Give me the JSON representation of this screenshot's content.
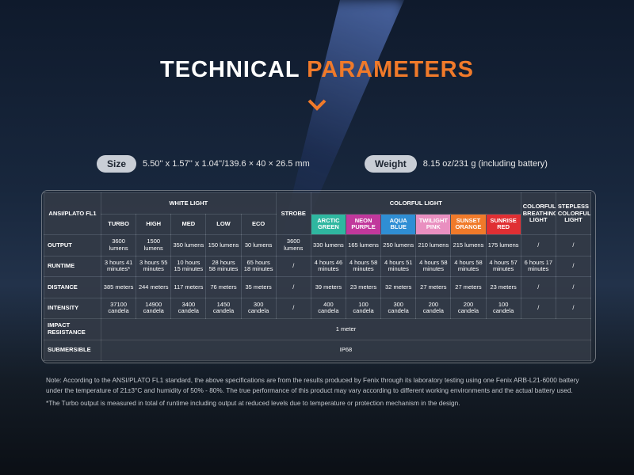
{
  "header": {
    "title_part1": "TECHNICAL",
    "title_part2": "PARAMETERS"
  },
  "specs": [
    {
      "label": "Size",
      "value": "5.50'' x 1.57'' x 1.04''/139.6 × 40 × 26.5 mm"
    },
    {
      "label": "Weight",
      "value": "8.15 oz/231 g (including battery)"
    }
  ],
  "table": {
    "corner": "ANSI/PLATO FL1",
    "groups": [
      {
        "label": "WHITE LIGHT",
        "modes": [
          "TURBO",
          "HIGH",
          "MED",
          "LOW",
          "ECO"
        ]
      },
      {
        "label": "STROBE"
      },
      {
        "label": "COLORFUL LIGHT",
        "modes": [
          "ARCTIC GREEN",
          "NEON PURPLE",
          "AQUA BLUE",
          "TWILIGHT PINK",
          "SUNSET ORANGE",
          "SUNRISE RED"
        ]
      },
      {
        "label": "COLORFUL BREATHING LIGHT"
      },
      {
        "label": "STEPLESS COLORFUL LIGHT"
      }
    ],
    "rows": [
      {
        "label": "OUTPUT",
        "values": [
          "3600 lumens",
          "1500 lumens",
          "350 lumens",
          "150 lumens",
          "30 lumens",
          "3600 lumens",
          "330 lumens",
          "165 lumens",
          "250 lumens",
          "210 lumens",
          "215 lumens",
          "175 lumens",
          "/",
          "/"
        ]
      },
      {
        "label": "RUNTIME",
        "values": [
          "3 hours 41 minutes*",
          "3 hours 55 minutes",
          "10 hours 15 minutes",
          "28 hours 58 minutes",
          "65 hours 18 minutes",
          "/",
          "4 hours 46 minutes",
          "4 hours 58 minutes",
          "4 hours 51 minutes",
          "4 hours 58 minutes",
          "4 hours 58 minutes",
          "4 hours 57 minutes",
          "6 hours 17 minutes",
          "/"
        ]
      },
      {
        "label": "DISTANCE",
        "values": [
          "385 meters",
          "244 meters",
          "117 meters",
          "76 meters",
          "35 meters",
          "/",
          "39 meters",
          "23 meters",
          "32 meters",
          "27 meters",
          "27 meters",
          "23 meters",
          "/",
          "/"
        ]
      },
      {
        "label": "INTENSITY",
        "values": [
          "37100 candela",
          "14900 candela",
          "3400 candela",
          "1450 candela",
          "300 candela",
          "/",
          "400 candela",
          "100 candela",
          "300 candela",
          "200 candela",
          "200 candela",
          "100 candela",
          "/",
          "/"
        ]
      },
      {
        "label": "IMPACT RESISTANCE",
        "value": "1 meter"
      },
      {
        "label": "SUBMERSIBLE",
        "value": "IP68"
      }
    ]
  },
  "notes": [
    "Note: According to the ANSI/PLATO FL1 standard, the above specifications are from the results produced by Fenix through its laboratory testing using one Fenix ARB-L21-6000 battery under the temperature of 21±3°C and humidity of 50% - 80%. The true performance of this product may vary according to different working environments and the actual battery used.",
    "*The Turbo output is measured in total of runtime including output at reduced levels due to temperature or protection mechanism in the design."
  ]
}
